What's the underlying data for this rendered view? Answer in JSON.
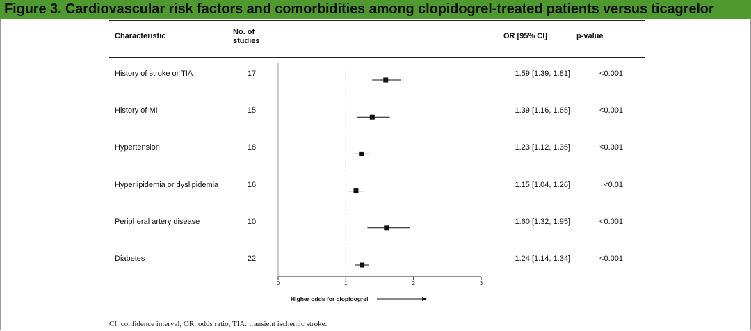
{
  "title": "Figure 3. Cardiovascular risk factors and comorbidities among clopidogrel-treated patients versus ticagrelor",
  "headers": {
    "characteristic": "Characteristic",
    "studies_line1": "No. of",
    "studies_line2": "studies",
    "or": "OR [95% CI]",
    "pvalue": "p-value"
  },
  "rows": [
    {
      "label": "History of stroke or TIA",
      "studies": "17",
      "or_text": "1.59 [1.39, 1.81]",
      "p": "<0.001"
    },
    {
      "label": "History of MI",
      "studies": "15",
      "or_text": "1.39 [1.16, 1.65]",
      "p": "<0.001"
    },
    {
      "label": "Hypertension",
      "studies": "18",
      "or_text": "1.23 [1.12, 1.35]",
      "p": "<0.001"
    },
    {
      "label": "Hyperlipidemia or dyslipidemia",
      "studies": "16",
      "or_text": "1.15 [1.04, 1.26]",
      "p": "<0.01"
    },
    {
      "label": "Peripheral artery disease",
      "studies": "10",
      "or_text": "1.60 [1.32, 1.95]",
      "p": "<0.001"
    },
    {
      "label": "Diabetes",
      "studies": "22",
      "or_text": "1.24 [1.14, 1.34]",
      "p": "<0.001"
    }
  ],
  "chart_data": {
    "type": "forest",
    "categories": [
      "History of stroke or TIA",
      "History of MI",
      "Hypertension",
      "Hyperlipidemia or dyslipidemia",
      "Peripheral artery disease",
      "Diabetes"
    ],
    "or": [
      1.59,
      1.39,
      1.23,
      1.15,
      1.6,
      1.24
    ],
    "ci_low": [
      1.39,
      1.16,
      1.12,
      1.04,
      1.32,
      1.14
    ],
    "ci_high": [
      1.81,
      1.65,
      1.35,
      1.26,
      1.95,
      1.34
    ],
    "xlim": [
      0,
      3
    ],
    "xticks": [
      "0",
      "1",
      "2",
      "3"
    ],
    "reference_line": 1,
    "xlabel": "Higher odds for clopidogrel"
  },
  "footnote": "CI: confidence interval, OR: odds ratio, TIA: transient ischemic stroke.",
  "colors": {
    "title_bar": "#4f9a2e",
    "marker": "#111111",
    "reference_line": "#9fc3e0"
  }
}
